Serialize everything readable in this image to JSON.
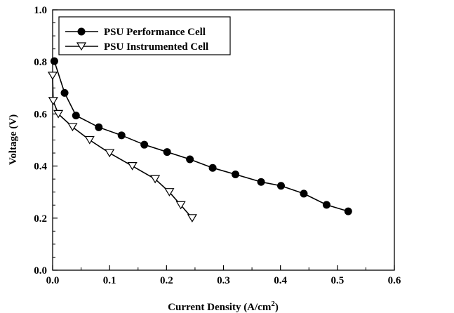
{
  "chart_data": {
    "type": "line",
    "xlabel": "Current Density (A/cm",
    "xlabel_sup": "2",
    "xlabel_end": ")",
    "ylabel": "Voltage (V)",
    "xlim": [
      0.0,
      0.6
    ],
    "ylim": [
      0.0,
      1.0
    ],
    "x_ticks": [
      "0.0",
      "0.1",
      "0.2",
      "0.3",
      "0.4",
      "0.5",
      "0.6"
    ],
    "y_ticks": [
      "0.0",
      "0.2",
      "0.4",
      "0.6",
      "0.8",
      "1.0"
    ],
    "legend_position": "top-left",
    "series": [
      {
        "name": "PSU Performance Cell",
        "marker": "filled-circle",
        "x": [
          0.003,
          0.021,
          0.041,
          0.081,
          0.121,
          0.161,
          0.201,
          0.241,
          0.281,
          0.321,
          0.366,
          0.401,
          0.441,
          0.481,
          0.519
        ],
        "y": [
          0.803,
          0.681,
          0.594,
          0.549,
          0.518,
          0.482,
          0.454,
          0.426,
          0.393,
          0.368,
          0.339,
          0.324,
          0.294,
          0.251,
          0.226
        ]
      },
      {
        "name": "PSU Instrumented Cell",
        "marker": "open-triangle-down",
        "x": [
          0.0,
          0.001,
          0.01,
          0.035,
          0.065,
          0.1,
          0.14,
          0.18,
          0.205,
          0.225,
          0.245
        ],
        "y": [
          0.747,
          0.65,
          0.6,
          0.55,
          0.5,
          0.45,
          0.4,
          0.35,
          0.3,
          0.25,
          0.2
        ]
      }
    ]
  }
}
